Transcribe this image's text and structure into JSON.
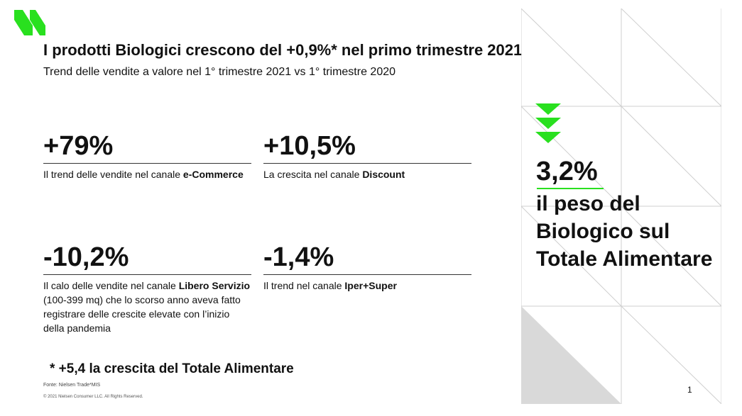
{
  "header": {
    "title": "I prodotti Biologici crescono del +0,9%* nel primo trimestre 2021",
    "subtitle": "Trend delle vendite a valore nel 1° trimestre 2021 vs 1° trimestre 2020"
  },
  "stats": [
    {
      "value": "+79%",
      "desc_pre": "Il trend delle vendite nel canale ",
      "desc_bold": "e-Commerce",
      "desc_post": ""
    },
    {
      "value": "+10,5%",
      "desc_pre": "La crescita nel canale ",
      "desc_bold": "Discount",
      "desc_post": ""
    },
    {
      "value": "-10,2%",
      "desc_pre": "Il calo delle vendite nel canale ",
      "desc_bold": "Libero Servizio",
      "desc_post": " (100-399 mq) che lo scorso anno aveva fatto registrare delle crescite elevate con l’inizio della pandemia"
    },
    {
      "value": "-1,4%",
      "desc_pre": "Il trend nel canale ",
      "desc_bold": "Iper+Super",
      "desc_post": ""
    }
  ],
  "footnote": "* +5,4 la crescita del Totale Alimentare",
  "source": "Fonte: Nielsen Trade*MIS",
  "copyright": "© 2021 Nielsen Consumer LLC. All Rights Reserved.",
  "page_number": "1",
  "highlight": {
    "value": "3,2%",
    "text": "il peso del Biologico sul Totale Alimentare"
  },
  "colors": {
    "accent_green": "#29e01f",
    "text": "#111111",
    "pattern_gray": "#d9d9d9"
  },
  "icons": {
    "logo": "nielsen-logo",
    "arrows": "triple-down-arrow-icon"
  }
}
